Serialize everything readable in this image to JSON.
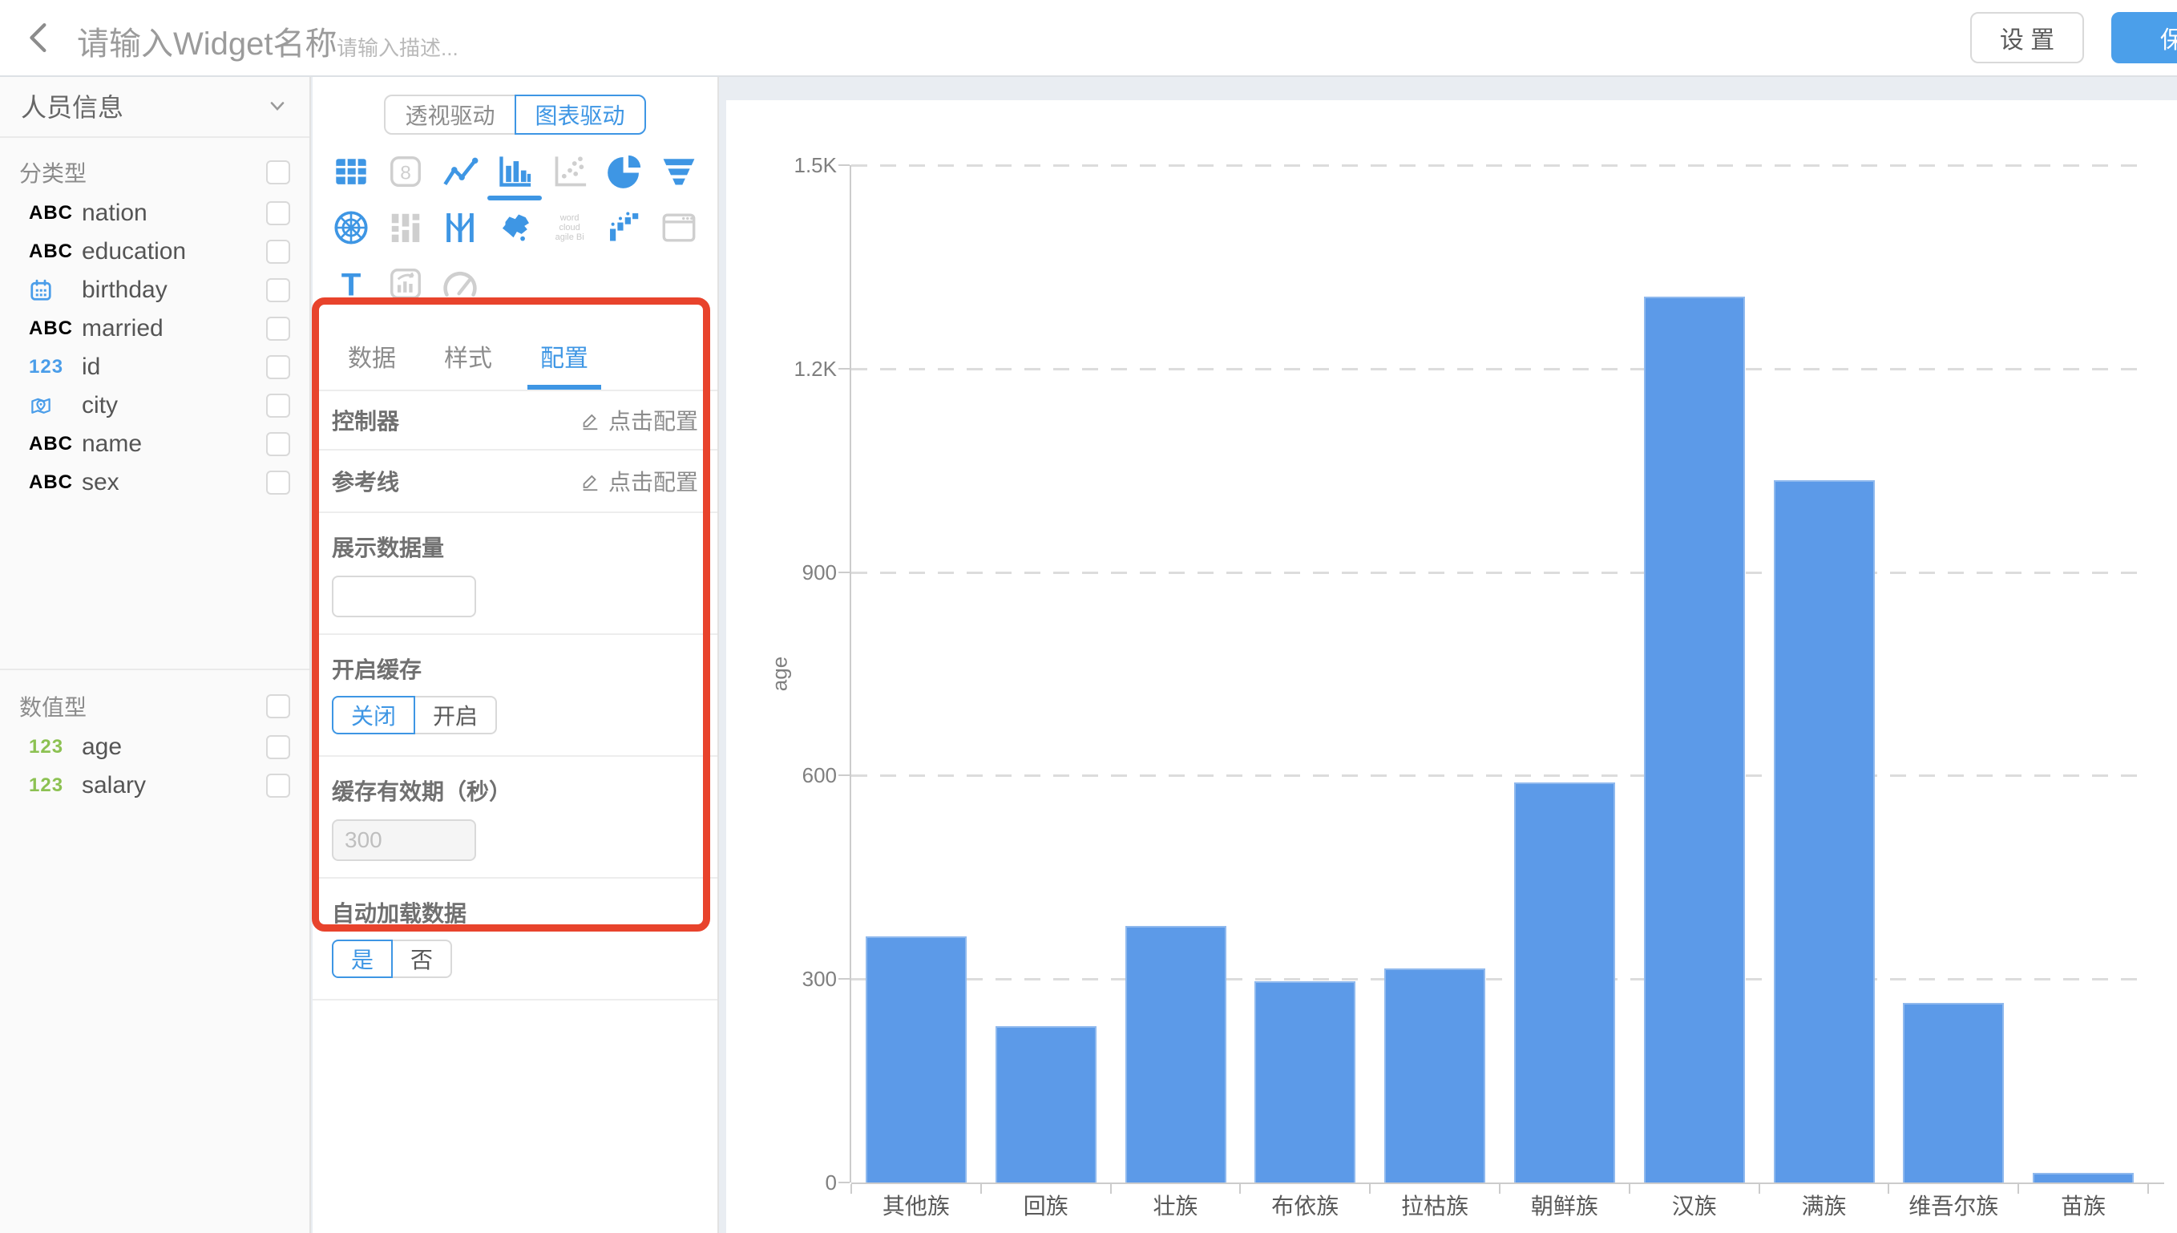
{
  "header": {
    "title_placeholder": "请输入Widget名称",
    "description_placeholder": "请输入描述...",
    "settings_label": "设 置",
    "save_label": "保 存"
  },
  "sidebar": {
    "dataset_name": "人员信息",
    "groups": [
      {
        "label": "分类型",
        "items": [
          {
            "icon": "abc",
            "name": "nation"
          },
          {
            "icon": "abc",
            "name": "education"
          },
          {
            "icon": "calendar",
            "name": "birthday"
          },
          {
            "icon": "abc",
            "name": "married"
          },
          {
            "icon": "num-blue",
            "name": "id"
          },
          {
            "icon": "map-pin",
            "name": "city"
          },
          {
            "icon": "abc",
            "name": "name"
          },
          {
            "icon": "abc",
            "name": "sex"
          }
        ]
      },
      {
        "label": "数值型",
        "items": [
          {
            "icon": "num-green",
            "name": "age"
          },
          {
            "icon": "num-green",
            "name": "salary"
          }
        ]
      }
    ]
  },
  "editor": {
    "mode_toggle": [
      {
        "label": "透视驱动",
        "active": false
      },
      {
        "label": "图表驱动",
        "active": true
      }
    ],
    "chart_types": [
      {
        "name": "table",
        "state": "enabled"
      },
      {
        "name": "digit",
        "state": "disabled"
      },
      {
        "name": "line",
        "state": "enabled"
      },
      {
        "name": "bar",
        "state": "selected"
      },
      {
        "name": "scatter",
        "state": "disabled"
      },
      {
        "name": "pie",
        "state": "enabled"
      },
      {
        "name": "funnel",
        "state": "enabled"
      },
      {
        "name": "radar",
        "state": "enabled"
      },
      {
        "name": "sankey",
        "state": "disabled"
      },
      {
        "name": "parallel",
        "state": "enabled"
      },
      {
        "name": "map",
        "state": "enabled"
      },
      {
        "name": "wordcloud",
        "state": "disabled"
      },
      {
        "name": "waterfall",
        "state": "enabled"
      },
      {
        "name": "iframe",
        "state": "disabled"
      },
      {
        "name": "text",
        "state": "enabled"
      },
      {
        "name": "richtext",
        "state": "disabled"
      },
      {
        "name": "gauge",
        "state": "disabled"
      }
    ],
    "wordcloud_lines": [
      "word",
      "cloud",
      "agile Bi"
    ],
    "tabs": [
      {
        "label": "数据",
        "active": false
      },
      {
        "label": "样式",
        "active": false
      },
      {
        "label": "配置",
        "active": true
      }
    ],
    "config": {
      "controller_label": "控制器",
      "controller_action": "点击配置",
      "reference_line_label": "参考线",
      "reference_line_action": "点击配置",
      "display_count_label": "展示数据量",
      "display_count_value": "",
      "cache_label": "开启缓存",
      "cache_options": [
        "关闭",
        "开启"
      ],
      "cache_selected": 0,
      "cache_ttl_label": "缓存有效期（秒）",
      "cache_ttl_placeholder": "300",
      "auto_load_label": "自动加载数据",
      "auto_load_options": [
        "是",
        "否"
      ],
      "auto_load_selected": 0
    }
  },
  "chart_data": {
    "type": "bar",
    "categories": [
      "其他族",
      "回族",
      "壮族",
      "布依族",
      "拉枯族",
      "朝鲜族",
      "汉族",
      "满族",
      "维吾尔族",
      "苗族"
    ],
    "values": [
      363,
      231,
      378,
      297,
      316,
      590,
      1306,
      1036,
      265,
      14
    ],
    "title": "",
    "xlabel": "",
    "ylabel": "age",
    "ylim": [
      0,
      1500
    ],
    "yticks": [
      {
        "label": "0",
        "value": 0
      },
      {
        "label": "300",
        "value": 300
      },
      {
        "label": "600",
        "value": 600
      },
      {
        "label": "900",
        "value": 900
      },
      {
        "label": "1.2K",
        "value": 1200
      },
      {
        "label": "1.5K",
        "value": 1500
      }
    ],
    "grid": true,
    "legend_position": "none",
    "bar_color": "#5C9AE8"
  }
}
